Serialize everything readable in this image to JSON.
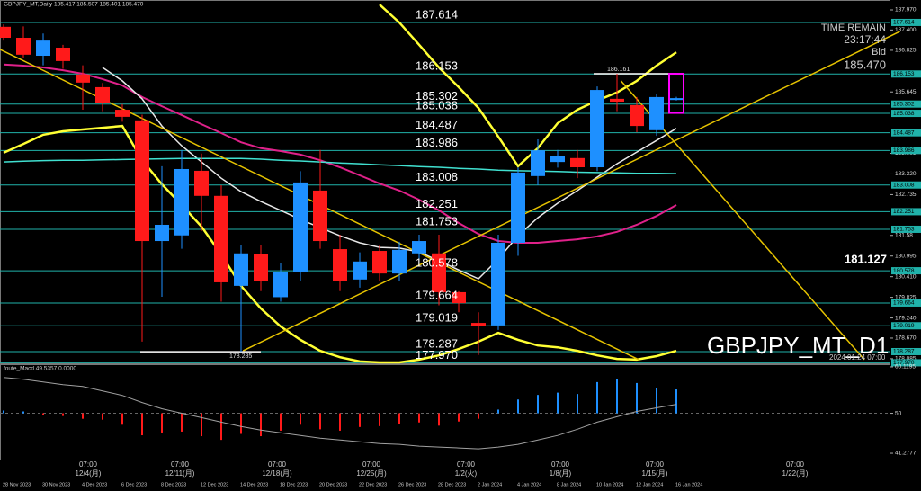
{
  "chart_data": {
    "type": "candlestick",
    "title": "GBPJPY_MT,Daily 185.417 185.507 185.401 185.470",
    "watermark": "GBPJPY_MT_D1",
    "time_remain_label": "TIME REMAIN",
    "time_remain": "23:17:44",
    "bid_label": "Bid",
    "bid": {
      "value": 185.47,
      "label": "185.470"
    },
    "side_price": 181.127,
    "future_time": "2024.01.24 07:00",
    "high_label": 186.161,
    "low_label": 178.285,
    "categories": [
      "28 Nov 2023",
      null,
      "30 Nov 2023",
      null,
      "4 Dec 2023",
      null,
      "6 Dec 2023",
      null,
      "8 Dec 2023",
      null,
      "12 Dec 2023",
      null,
      "14 Dec 2023",
      null,
      "18 Dec 2023",
      null,
      "20 Dec 2023",
      null,
      "22 Dec 2023",
      null,
      "26 Dec 2023",
      null,
      "28 Dec 2023",
      null,
      "2 Jan 2024",
      null,
      "4 Jan 2024",
      null,
      "8 Jan 2024",
      null,
      "10 Jan 2024",
      null,
      "12 Jan 2024",
      null,
      "16 Jan 2024"
    ],
    "open": [
      187.49,
      187.18,
      186.67,
      186.9,
      186.14,
      185.78,
      185.14,
      184.84,
      181.42,
      181.58,
      183.41,
      182.7,
      180.15,
      181.04,
      179.83,
      180.53,
      182.85,
      181.19,
      180.33,
      181.14,
      180.5,
      181.07,
      181.07,
      179.97,
      179.1,
      179.03,
      181.37,
      183.26,
      183.66,
      183.77,
      183.51,
      185.45,
      185.27,
      184.56,
      185.417
    ],
    "high": [
      187.56,
      187.5,
      187.3,
      186.98,
      186.4,
      185.9,
      185.3,
      185.0,
      183.54,
      184.0,
      183.9,
      183.0,
      181.3,
      181.3,
      180.8,
      183.4,
      184.0,
      181.6,
      181.1,
      181.3,
      181.4,
      181.6,
      181.6,
      180.0,
      179.4,
      181.6,
      183.5,
      184.3,
      184.0,
      184.0,
      185.8,
      186.161,
      185.5,
      185.6,
      185.507
    ],
    "low": [
      187.1,
      186.6,
      186.4,
      186.3,
      185.14,
      185.1,
      184.8,
      178.57,
      179.84,
      181.2,
      181.7,
      179.7,
      178.285,
      180.0,
      179.7,
      180.3,
      181.2,
      180.0,
      180.1,
      180.3,
      180.3,
      180.9,
      179.6,
      179.4,
      178.19,
      178.9,
      181.0,
      183.0,
      183.5,
      183.2,
      183.4,
      185.1,
      184.5,
      184.4,
      185.401
    ],
    "close": [
      187.18,
      186.7,
      187.1,
      186.52,
      185.91,
      185.32,
      184.94,
      181.42,
      181.88,
      183.46,
      182.7,
      180.25,
      181.07,
      180.3,
      180.53,
      183.08,
      181.42,
      180.3,
      180.84,
      180.5,
      181.17,
      181.42,
      179.97,
      179.66,
      179.0,
      181.37,
      183.36,
      183.99,
      183.84,
      183.51,
      185.7,
      185.37,
      184.68,
      185.5,
      185.47
    ],
    "up_color": "#1e90ff",
    "down_color": "#ff1a1a",
    "ylim": [
      177.93,
      188.25
    ],
    "yticks": [
      {
        "value": 187.97,
        "label": "187.970"
      },
      {
        "value": 187.4,
        "label": "187.400"
      },
      186.825,
      185.645,
      183.905,
      {
        "value": 183.32,
        "label": "183.320"
      },
      182.735,
      181.58,
      180.995,
      {
        "value": 180.41,
        "label": "180.410"
      },
      179.825,
      {
        "value": 179.24,
        "label": "179.240"
      },
      {
        "value": 178.67,
        "label": "178.670"
      },
      178.085
    ],
    "levels": [
      187.614,
      186.153,
      185.302,
      185.038,
      184.487,
      183.986,
      183.008,
      182.251,
      181.753,
      180.578,
      179.664,
      179.019,
      178.287,
      {
        "value": 177.97,
        "label": "177.970"
      }
    ],
    "level_color": "#20b2aa",
    "series": [
      {
        "color": "#ffff33",
        "width": 2.5,
        "values": [
          183.92,
          184.17,
          184.43,
          184.53,
          184.58,
          184.63,
          184.68,
          183.71,
          183.03,
          182.44,
          181.83,
          181.04,
          180.15,
          179.51,
          179.0,
          178.62,
          178.31,
          178.13,
          178.01,
          177.98,
          177.98,
          178.06,
          178.18,
          178.36,
          178.57,
          178.82,
          178.62,
          178.46,
          178.41,
          178.31,
          178.18,
          178.08,
          178.06,
          178.16,
          178.31
        ]
      },
      {
        "color": "#ffff33",
        "width": 2.5,
        "values": [
          null,
          null,
          null,
          null,
          null,
          null,
          null,
          null,
          null,
          null,
          null,
          null,
          null,
          null,
          null,
          null,
          null,
          null,
          null,
          188.12,
          187.61,
          186.98,
          186.34,
          185.78,
          185.19,
          184.38,
          183.54,
          184.05,
          184.76,
          185.14,
          185.4,
          185.63,
          185.96,
          186.39,
          186.77
        ]
      },
      {
        "color": "#e0218a",
        "width": 2,
        "values": [
          186.42,
          186.39,
          186.34,
          186.26,
          186.16,
          186.01,
          185.83,
          185.5,
          185.24,
          184.99,
          184.73,
          184.48,
          184.22,
          184.05,
          183.97,
          183.87,
          183.71,
          183.51,
          183.28,
          183.05,
          182.85,
          182.59,
          182.29,
          181.93,
          181.62,
          181.42,
          181.37,
          181.37,
          181.42,
          181.47,
          181.55,
          181.68,
          181.88,
          182.13,
          182.44
        ]
      },
      {
        "color": "#e8e8e8",
        "width": 1.5,
        "values": [
          null,
          null,
          null,
          null,
          null,
          186.34,
          185.96,
          185.45,
          184.68,
          184.12,
          183.66,
          183.2,
          182.82,
          182.54,
          182.29,
          182.03,
          181.8,
          181.57,
          181.37,
          181.24,
          181.22,
          181.11,
          180.86,
          180.6,
          180.35,
          180.91,
          181.57,
          182.08,
          182.49,
          182.85,
          183.23,
          183.61,
          183.94,
          184.27,
          184.61
        ]
      },
      {
        "color": "#40e0d0",
        "width": 1.5,
        "values": [
          183.66,
          183.68,
          183.7,
          183.71,
          183.71,
          183.72,
          183.73,
          183.74,
          183.75,
          183.76,
          183.76,
          183.76,
          183.76,
          183.74,
          183.71,
          183.69,
          183.66,
          183.63,
          183.61,
          183.58,
          183.56,
          183.53,
          183.51,
          183.48,
          183.46,
          183.43,
          183.41,
          183.4,
          183.39,
          183.37,
          183.36,
          183.35,
          183.34,
          183.34,
          183.33
        ]
      }
    ],
    "trendlines": [
      {
        "color": "#e6c300",
        "x": [
          -0.18,
          32.1
        ],
        "values": [
          186.85,
          178.06
        ]
      },
      {
        "color": "#e6c300",
        "x": [
          12.1,
          45.3
        ],
        "values": [
          178.31,
          187.36
        ]
      },
      {
        "color": "#e6c300",
        "x": [
          31.2,
          43.5
        ],
        "values": [
          185.96,
          178.06
        ]
      }
    ],
    "current_box": {
      "color": "#ff00ff",
      "top": 186.16,
      "bottom": 185.05
    },
    "time_labels": [
      {
        "time": "07:00",
        "date": "12/4(月)"
      },
      {
        "time": "07:00",
        "date": "12/11(月)"
      },
      {
        "time": "07:00",
        "date": "12/18(月)"
      },
      {
        "time": "07:00",
        "date": "12/25(月)"
      },
      {
        "time": "07:00",
        "date": "1/2(火)"
      },
      {
        "time": "07:00",
        "date": "1/8(月)"
      },
      {
        "time": "07:00",
        "date": "1/15(月)"
      },
      {
        "time": "07:00",
        "date": "1/22(月)"
      }
    ],
    "macd": {
      "title": "foute_Macd 49.5357 0.0000",
      "ylim": [
        39.91,
        60.7
      ],
      "yticks": [
        60.1195,
        50,
        41.2777
      ],
      "baseline": 50,
      "up_color": "#1e90ff",
      "down_color": "#ff1a1a",
      "values": [
        50.6,
        50.4,
        49.6,
        49.4,
        48.8,
        48.6,
        47.5,
        45.2,
        45.8,
        46.0,
        45.0,
        44.2,
        45.5,
        45.0,
        46.2,
        47.5,
        46.5,
        46.2,
        47.0,
        47.2,
        47.6,
        48.0,
        47.3,
        48.2,
        48.8,
        50.8,
        53.0,
        54.0,
        54.5,
        54.2,
        56.8,
        57.4,
        56.6,
        55.5,
        55.2
      ],
      "signal_color": "#a0a0a0",
      "signal": [
        57.79,
        57.4,
        56.82,
        56.23,
        55.85,
        54.87,
        53.9,
        52.35,
        50.99,
        50.02,
        49.04,
        48.07,
        47.1,
        46.32,
        45.74,
        45.16,
        44.58,
        44.19,
        43.8,
        43.41,
        43.22,
        42.83,
        42.63,
        42.44,
        42.24,
        42.63,
        43.22,
        44.19,
        45.16,
        46.52,
        48.07,
        49.24,
        50.41,
        51.18,
        51.96
      ]
    }
  }
}
